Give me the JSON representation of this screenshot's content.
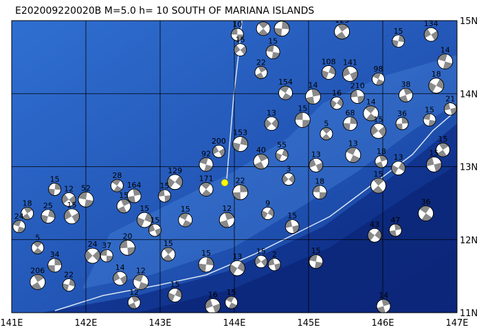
{
  "title": "E202009220020B M=5.0 h= 10 SOUTH OF MARIANA ISLANDS",
  "lon_range": [
    141,
    147
  ],
  "lat_range": [
    11,
    15
  ],
  "lon_ticks": [
    {
      "value": 141,
      "label": "141E"
    },
    {
      "value": 142,
      "label": "142E"
    },
    {
      "value": 143,
      "label": "143E"
    },
    {
      "value": 144,
      "label": "144E"
    },
    {
      "value": 145,
      "label": "145E"
    },
    {
      "value": 146,
      "label": "146E"
    },
    {
      "value": 147,
      "label": "147E"
    }
  ],
  "lat_ticks": [
    {
      "value": 15,
      "label": "15N"
    },
    {
      "value": 14,
      "label": "14N"
    },
    {
      "value": 13,
      "label": "13N"
    },
    {
      "value": 12,
      "label": "12N"
    },
    {
      "value": 11,
      "label": "11N"
    }
  ],
  "epicenter": {
    "lon": 143.87,
    "lat": 12.78
  },
  "events": [
    {
      "lon": 144.04,
      "lat": 14.81,
      "label": "10"
    },
    {
      "lon": 144.39,
      "lat": 14.89,
      "label": "18"
    },
    {
      "lon": 144.64,
      "lat": 14.89,
      "label": "45"
    },
    {
      "lon": 144.08,
      "lat": 14.6,
      "label": "15"
    },
    {
      "lon": 144.52,
      "lat": 14.57,
      "label": "15"
    },
    {
      "lon": 145.45,
      "lat": 14.85,
      "label": "123"
    },
    {
      "lon": 146.21,
      "lat": 14.72,
      "label": "15"
    },
    {
      "lon": 146.65,
      "lat": 14.81,
      "label": "134"
    },
    {
      "lon": 146.84,
      "lat": 14.44,
      "label": "14"
    },
    {
      "lon": 144.36,
      "lat": 14.29,
      "label": "22"
    },
    {
      "lon": 145.27,
      "lat": 14.29,
      "label": "108"
    },
    {
      "lon": 145.56,
      "lat": 14.27,
      "label": "141"
    },
    {
      "lon": 145.94,
      "lat": 14.2,
      "label": "98"
    },
    {
      "lon": 146.31,
      "lat": 13.98,
      "label": "38"
    },
    {
      "lon": 146.72,
      "lat": 14.11,
      "label": "18"
    },
    {
      "lon": 146.91,
      "lat": 13.79,
      "label": "21"
    },
    {
      "lon": 144.69,
      "lat": 14.01,
      "label": "154"
    },
    {
      "lon": 145.06,
      "lat": 13.96,
      "label": "14"
    },
    {
      "lon": 145.38,
      "lat": 13.87,
      "label": "16"
    },
    {
      "lon": 145.66,
      "lat": 13.96,
      "label": "210"
    },
    {
      "lon": 145.84,
      "lat": 13.73,
      "label": "14"
    },
    {
      "lon": 146.26,
      "lat": 13.59,
      "label": "36"
    },
    {
      "lon": 144.5,
      "lat": 13.59,
      "label": "13"
    },
    {
      "lon": 144.92,
      "lat": 13.64,
      "label": "15"
    },
    {
      "lon": 145.24,
      "lat": 13.45,
      "label": "5"
    },
    {
      "lon": 145.56,
      "lat": 13.59,
      "label": "68"
    },
    {
      "lon": 145.94,
      "lat": 13.49,
      "label": "15"
    },
    {
      "lon": 146.63,
      "lat": 13.64,
      "label": "15"
    },
    {
      "lon": 146.81,
      "lat": 13.23,
      "label": "15"
    },
    {
      "lon": 144.08,
      "lat": 13.31,
      "label": "153"
    },
    {
      "lon": 143.79,
      "lat": 13.21,
      "label": "200"
    },
    {
      "lon": 143.62,
      "lat": 13.03,
      "label": "92"
    },
    {
      "lon": 144.36,
      "lat": 13.07,
      "label": "40"
    },
    {
      "lon": 144.64,
      "lat": 13.16,
      "label": "55"
    },
    {
      "lon": 145.1,
      "lat": 13.02,
      "label": "13"
    },
    {
      "lon": 145.6,
      "lat": 13.16,
      "label": "13"
    },
    {
      "lon": 145.98,
      "lat": 13.07,
      "label": "18"
    },
    {
      "lon": 146.21,
      "lat": 12.98,
      "label": "13"
    },
    {
      "lon": 146.69,
      "lat": 13.03,
      "label": "15"
    },
    {
      "lon": 142.42,
      "lat": 12.74,
      "label": "28"
    },
    {
      "lon": 142.65,
      "lat": 12.6,
      "label": "164"
    },
    {
      "lon": 143.2,
      "lat": 12.79,
      "label": "129"
    },
    {
      "lon": 143.06,
      "lat": 12.6,
      "label": "15"
    },
    {
      "lon": 143.62,
      "lat": 12.69,
      "label": "171"
    },
    {
      "lon": 144.08,
      "lat": 12.65,
      "label": "22"
    },
    {
      "lon": 144.73,
      "lat": 12.83,
      "label": "3"
    },
    {
      "lon": 145.15,
      "lat": 12.65,
      "label": "18"
    },
    {
      "lon": 145.94,
      "lat": 12.74,
      "label": "15"
    },
    {
      "lon": 141.58,
      "lat": 12.69,
      "label": "15"
    },
    {
      "lon": 141.77,
      "lat": 12.55,
      "label": "12"
    },
    {
      "lon": 142.0,
      "lat": 12.55,
      "label": "52"
    },
    {
      "lon": 141.21,
      "lat": 12.36,
      "label": "18"
    },
    {
      "lon": 141.49,
      "lat": 12.32,
      "label": "25"
    },
    {
      "lon": 141.81,
      "lat": 12.32,
      "label": "15"
    },
    {
      "lon": 141.1,
      "lat": 12.18,
      "label": "24"
    },
    {
      "lon": 142.51,
      "lat": 12.46,
      "label": "15"
    },
    {
      "lon": 142.79,
      "lat": 12.27,
      "label": "15"
    },
    {
      "lon": 142.93,
      "lat": 12.13,
      "label": "15"
    },
    {
      "lon": 143.34,
      "lat": 12.27,
      "label": "15"
    },
    {
      "lon": 143.9,
      "lat": 12.27,
      "label": "12"
    },
    {
      "lon": 144.45,
      "lat": 12.36,
      "label": "9"
    },
    {
      "lon": 144.78,
      "lat": 12.18,
      "label": "15"
    },
    {
      "lon": 146.58,
      "lat": 12.36,
      "label": "36"
    },
    {
      "lon": 146.17,
      "lat": 12.13,
      "label": "47"
    },
    {
      "lon": 145.89,
      "lat": 12.06,
      "label": "43"
    },
    {
      "lon": 142.56,
      "lat": 11.89,
      "label": "20"
    },
    {
      "lon": 141.35,
      "lat": 11.89,
      "label": "5"
    },
    {
      "lon": 141.58,
      "lat": 11.65,
      "label": "34"
    },
    {
      "lon": 142.09,
      "lat": 11.78,
      "label": "24"
    },
    {
      "lon": 142.28,
      "lat": 11.78,
      "label": "37"
    },
    {
      "lon": 143.11,
      "lat": 11.8,
      "label": "15"
    },
    {
      "lon": 143.62,
      "lat": 11.66,
      "label": "15"
    },
    {
      "lon": 144.36,
      "lat": 11.7,
      "label": "15"
    },
    {
      "lon": 145.1,
      "lat": 11.7,
      "label": "15"
    },
    {
      "lon": 141.35,
      "lat": 11.42,
      "label": "206"
    },
    {
      "lon": 141.77,
      "lat": 11.38,
      "label": "22"
    },
    {
      "lon": 142.46,
      "lat": 11.47,
      "label": "14"
    },
    {
      "lon": 142.74,
      "lat": 11.42,
      "label": "12"
    },
    {
      "lon": 142.65,
      "lat": 11.14,
      "label": "12"
    },
    {
      "lon": 143.2,
      "lat": 11.24,
      "label": "15"
    },
    {
      "lon": 143.71,
      "lat": 11.09,
      "label": "16"
    },
    {
      "lon": 143.96,
      "lat": 11.14,
      "label": "15"
    },
    {
      "lon": 146.01,
      "lat": 11.09,
      "label": "14"
    },
    {
      "lon": 144.04,
      "lat": 11.61,
      "label": "13"
    },
    {
      "lon": 144.54,
      "lat": 11.66,
      "label": "2"
    }
  ]
}
